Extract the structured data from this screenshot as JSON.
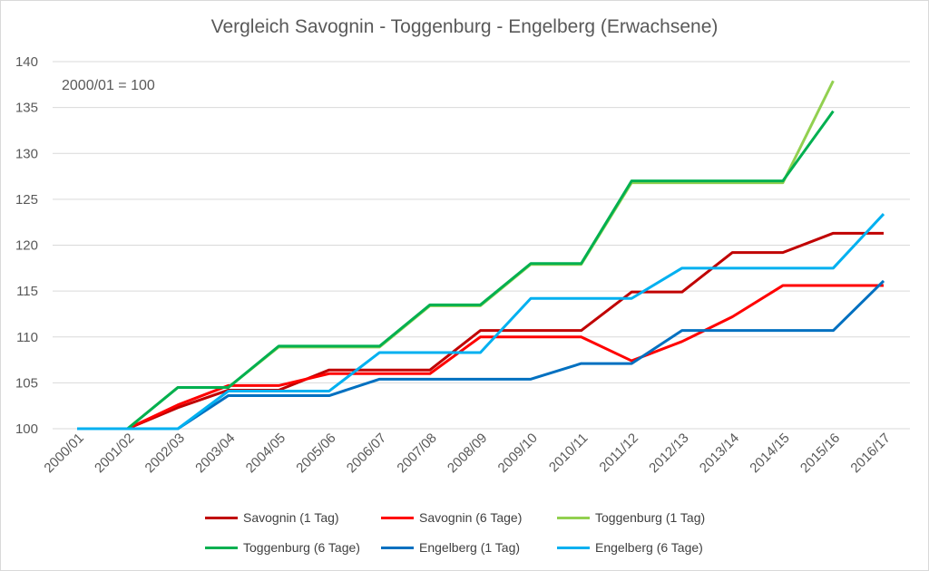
{
  "chart_data": {
    "type": "line",
    "title": "Vergleich Savognin - Toggenburg - Engelberg (Erwachsene)",
    "annotation": "2000/01 = 100",
    "categories": [
      "2000/01",
      "2001/02",
      "2002/03",
      "2003/04",
      "2004/05",
      "2005/06",
      "2006/07",
      "2007/08",
      "2008/09",
      "2009/10",
      "2010/11",
      "2011/12",
      "2012/13",
      "2013/14",
      "2014/15",
      "2015/16",
      "2016/17"
    ],
    "ylim": [
      100,
      140
    ],
    "yticks": [
      100,
      105,
      110,
      115,
      120,
      125,
      130,
      135,
      140
    ],
    "grid": true,
    "legend_position": "bottom",
    "series": [
      {
        "name": "Savognin (1 Tag)",
        "color": "#c00000",
        "values": [
          100,
          100,
          102.3,
          104.2,
          104.2,
          106.4,
          106.4,
          106.4,
          110.7,
          110.7,
          110.7,
          114.9,
          114.9,
          119.2,
          119.2,
          121.3,
          121.3
        ]
      },
      {
        "name": "Savognin (6 Tage)",
        "color": "#ff0000",
        "values": [
          100,
          100,
          102.6,
          104.7,
          104.7,
          106.0,
          106.0,
          106.0,
          110.0,
          110.0,
          110.0,
          107.4,
          109.5,
          112.2,
          115.6,
          115.6,
          115.6
        ]
      },
      {
        "name": "Toggenburg (1 Tag)",
        "color": "#92d050",
        "values": [
          100,
          100,
          104.5,
          104.5,
          108.9,
          108.9,
          108.9,
          113.4,
          113.4,
          117.9,
          117.9,
          126.8,
          126.8,
          126.8,
          126.8,
          137.9,
          null
        ]
      },
      {
        "name": "Toggenburg (6 Tage)",
        "color": "#00b050",
        "values": [
          100,
          100,
          104.5,
          104.5,
          109.0,
          109.0,
          109.0,
          113.5,
          113.5,
          118.0,
          118.0,
          127.0,
          127.0,
          127.0,
          127.0,
          134.6,
          null
        ]
      },
      {
        "name": "Engelberg (1 Tag)",
        "color": "#0070c0",
        "values": [
          100,
          100,
          100,
          103.6,
          103.6,
          103.6,
          105.4,
          105.4,
          105.4,
          105.4,
          107.1,
          107.1,
          110.7,
          110.7,
          110.7,
          110.7,
          116.1
        ]
      },
      {
        "name": "Engelberg (6 Tage)",
        "color": "#00b0f0",
        "values": [
          100,
          100,
          100,
          104.1,
          104.1,
          104.1,
          108.3,
          108.3,
          108.3,
          114.2,
          114.2,
          114.2,
          117.5,
          117.5,
          117.5,
          117.5,
          123.4
        ]
      }
    ]
  }
}
